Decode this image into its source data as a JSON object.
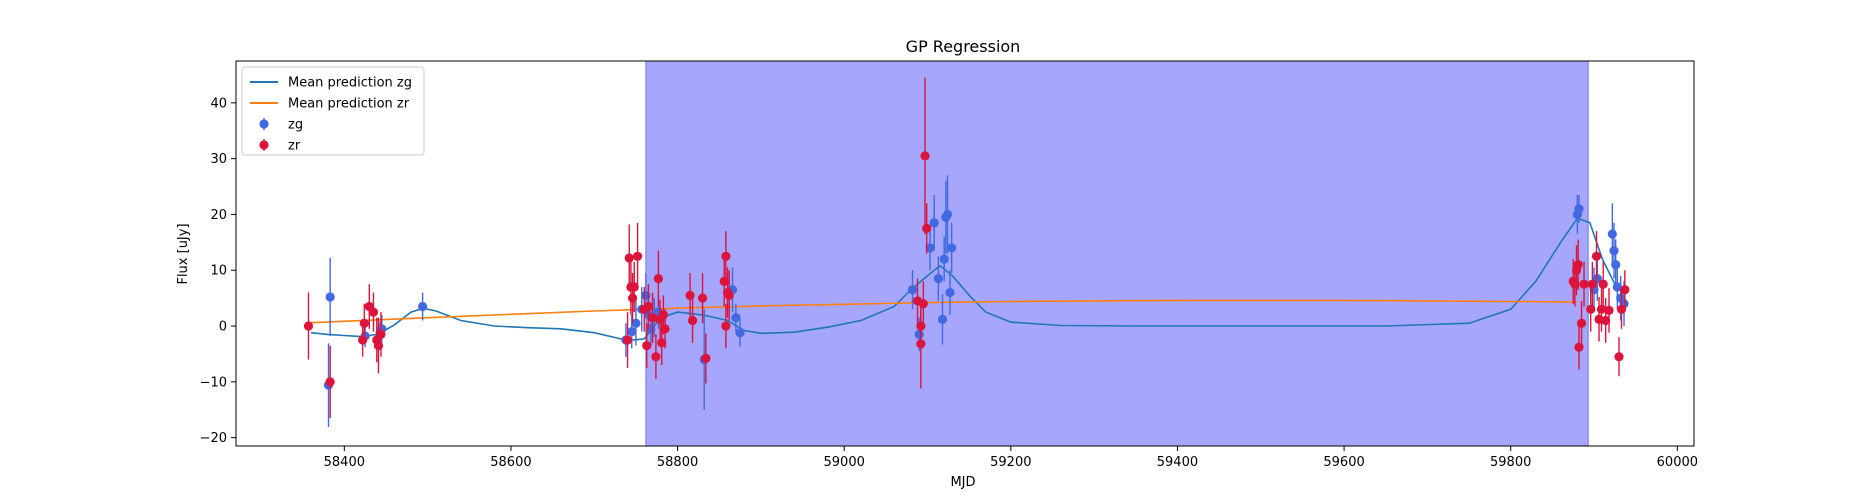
{
  "chart_data": {
    "type": "scatter",
    "title": "GP Regression",
    "xlabel": "MJD",
    "ylabel": "Flux [uJy]",
    "xlim": [
      58270,
      60020
    ],
    "ylim": [
      -21.5,
      47.5
    ],
    "xticks": [
      58400,
      58600,
      58800,
      59000,
      59200,
      59400,
      59600,
      59800,
      60000
    ],
    "yticks": [
      -20,
      -10,
      0,
      10,
      20,
      30,
      40
    ],
    "grid": false,
    "legend_placement": "upper-left",
    "span": {
      "x0": 58762,
      "x1": 59893,
      "color": "#a6a6fc"
    },
    "series": [
      {
        "name": "Mean prediction zg",
        "kind": "line",
        "color": "#1f77b4",
        "x": [
          58360,
          58380,
          58400,
          58420,
          58440,
          58460,
          58480,
          58495,
          58510,
          58540,
          58580,
          58620,
          58660,
          58700,
          58740,
          58760,
          58780,
          58800,
          58830,
          58860,
          58880,
          58900,
          58940,
          58980,
          59020,
          59060,
          59080,
          59100,
          59115,
          59130,
          59150,
          59170,
          59200,
          59260,
          59350,
          59500,
          59650,
          59750,
          59800,
          59830,
          59860,
          59880,
          59895,
          59910,
          59925,
          59940
        ],
        "y": [
          -1.2,
          -1.5,
          -1.7,
          -1.9,
          -1.5,
          0.2,
          2.5,
          3.2,
          2.7,
          1.0,
          0.0,
          -0.3,
          -0.5,
          -1.2,
          -2.6,
          -2.3,
          1.5,
          2.5,
          2.0,
          1.0,
          -0.8,
          -1.3,
          -1.1,
          -0.2,
          1.0,
          3.5,
          6.5,
          9.0,
          10.8,
          9.0,
          5.5,
          2.5,
          0.7,
          0.1,
          0.0,
          0.0,
          0.0,
          0.5,
          3.0,
          8.0,
          15.0,
          19.3,
          18.5,
          12.0,
          7.5,
          6.0
        ]
      },
      {
        "name": "Mean prediction zr",
        "kind": "line",
        "color": "#ff7f0e",
        "x": [
          58360,
          58500,
          58600,
          58700,
          58800,
          58900,
          59000,
          59100,
          59200,
          59300,
          59400,
          59500,
          59600,
          59700,
          59800,
          59880
        ],
        "y": [
          0.6,
          1.5,
          2.1,
          2.7,
          3.2,
          3.6,
          3.9,
          4.2,
          4.4,
          4.5,
          4.6,
          4.6,
          4.6,
          4.5,
          4.4,
          4.3
        ]
      },
      {
        "name": "zg",
        "kind": "errorbar",
        "color": "#4169e1",
        "points": [
          [
            58383,
            5.2,
            7.0
          ],
          [
            58381,
            -10.6,
            7.5
          ],
          [
            58425,
            -1.8,
            2.0
          ],
          [
            58443,
            -1.2,
            2.0
          ],
          [
            58445,
            -0.5,
            2.5
          ],
          [
            58494,
            3.5,
            2.5
          ],
          [
            58738,
            -2.5,
            3.0
          ],
          [
            58745,
            -1.0,
            3.0
          ],
          [
            58750,
            0.5,
            4.0
          ],
          [
            58757,
            3.0,
            4.0
          ],
          [
            58762,
            5.5,
            4.0
          ],
          [
            58765,
            2.0,
            3.5
          ],
          [
            58768,
            -0.5,
            3.0
          ],
          [
            58772,
            1.5,
            3.5
          ],
          [
            58777,
            2.5,
            3.0
          ],
          [
            58832,
            -6.0,
            9.0
          ],
          [
            58866,
            6.5,
            4.0
          ],
          [
            58870,
            1.5,
            2.5
          ],
          [
            58875,
            -1.2,
            2.5
          ],
          [
            59082,
            6.5,
            3.5
          ],
          [
            59090,
            -1.5,
            3.0
          ],
          [
            59103,
            14.0,
            4.0
          ],
          [
            59108,
            18.5,
            5.0
          ],
          [
            59113,
            8.5,
            4.0
          ],
          [
            59118,
            1.2,
            4.5
          ],
          [
            59120,
            12.0,
            4.0
          ],
          [
            59122,
            19.5,
            6.5
          ],
          [
            59124,
            20.0,
            7.0
          ],
          [
            59127,
            6.0,
            4.0
          ],
          [
            59129,
            14.0,
            4.5
          ],
          [
            59880,
            20.0,
            3.5
          ],
          [
            59882,
            21.0,
            2.5
          ],
          [
            59900,
            6.5,
            4.0
          ],
          [
            59904,
            8.5,
            4.0
          ],
          [
            59922,
            16.5,
            5.5
          ],
          [
            59924,
            13.5,
            5.0
          ],
          [
            59926,
            11.0,
            4.5
          ],
          [
            59928,
            7.0,
            4.0
          ],
          [
            59932,
            5.0,
            4.0
          ],
          [
            59936,
            4.0,
            4.0
          ]
        ]
      },
      {
        "name": "zr",
        "kind": "errorbar",
        "color": "#dc143c",
        "points": [
          [
            58357,
            0.0,
            6.0
          ],
          [
            58383,
            -10.0,
            6.5
          ],
          [
            58422,
            -2.5,
            3.0
          ],
          [
            58424,
            0.5,
            3.5
          ],
          [
            58430,
            3.5,
            4.0
          ],
          [
            58435,
            2.5,
            3.5
          ],
          [
            58439,
            -2.5,
            4.0
          ],
          [
            58441,
            -3.5,
            5.0
          ],
          [
            58444,
            -1.5,
            4.0
          ],
          [
            58740,
            -2.5,
            5.0
          ],
          [
            58742,
            12.2,
            6.0
          ],
          [
            58744,
            7.0,
            5.0
          ],
          [
            58746,
            5.0,
            4.5
          ],
          [
            58748,
            7.0,
            4.5
          ],
          [
            58752,
            12.5,
            6.0
          ],
          [
            58760,
            3.0,
            4.0
          ],
          [
            58763,
            -3.5,
            4.0
          ],
          [
            58765,
            3.5,
            4.0
          ],
          [
            58770,
            1.5,
            4.5
          ],
          [
            58774,
            -5.5,
            4.0
          ],
          [
            58777,
            8.5,
            5.0
          ],
          [
            58779,
            1.2,
            3.5
          ],
          [
            58781,
            -3.0,
            4.0
          ],
          [
            58783,
            2.0,
            3.5
          ],
          [
            58785,
            -0.5,
            3.5
          ],
          [
            58815,
            5.5,
            4.0
          ],
          [
            58818,
            1.0,
            4.0
          ],
          [
            58830,
            5.0,
            4.5
          ],
          [
            58834,
            -5.8,
            4.5
          ],
          [
            58856,
            8.0,
            4.5
          ],
          [
            58858,
            12.5,
            4.5
          ],
          [
            58860,
            6.0,
            4.5
          ],
          [
            58862,
            5.5,
            4.5
          ],
          [
            58858,
            0.0,
            4.0
          ],
          [
            59088,
            4.5,
            4.0
          ],
          [
            59092,
            0.0,
            4.0
          ],
          [
            59095,
            4.0,
            4.0
          ],
          [
            59097,
            30.5,
            14.0
          ],
          [
            59099,
            17.5,
            4.5
          ],
          [
            59092,
            -3.2,
            8.0
          ],
          [
            59875,
            8.0,
            4.0
          ],
          [
            59877,
            7.5,
            4.0
          ],
          [
            59879,
            10.0,
            4.5
          ],
          [
            59881,
            11.0,
            4.5
          ],
          [
            59882,
            -3.8,
            4.0
          ],
          [
            59885,
            0.5,
            4.0
          ],
          [
            59888,
            7.5,
            4.0
          ],
          [
            59896,
            3.0,
            4.0
          ],
          [
            59898,
            7.5,
            4.0
          ],
          [
            59903,
            12.5,
            4.5
          ],
          [
            59906,
            1.2,
            4.0
          ],
          [
            59909,
            3.0,
            4.0
          ],
          [
            59911,
            7.5,
            4.0
          ],
          [
            59914,
            1.0,
            4.0
          ],
          [
            59918,
            2.8,
            4.0
          ],
          [
            59930,
            -5.5,
            3.5
          ],
          [
            59933,
            3.0,
            3.5
          ],
          [
            59937,
            6.5,
            3.5
          ]
        ]
      }
    ],
    "legend": [
      {
        "label": "Mean prediction zg",
        "kind": "line",
        "color": "#1f77b4"
      },
      {
        "label": "Mean prediction zr",
        "kind": "line",
        "color": "#ff7f0e"
      },
      {
        "label": "zg",
        "kind": "errorbar",
        "color": "#4169e1"
      },
      {
        "label": "zr",
        "kind": "errorbar",
        "color": "#dc143c"
      }
    ]
  }
}
